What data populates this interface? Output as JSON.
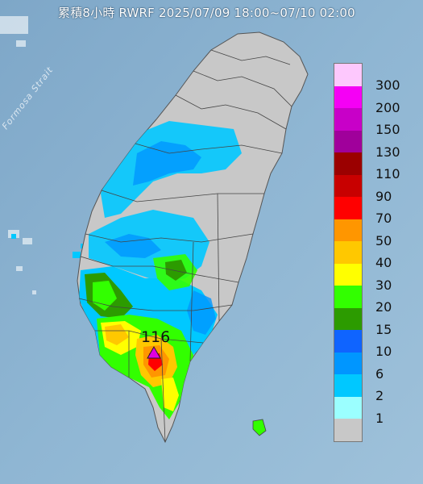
{
  "title": "累積8小時 RWRF 2025/07/09 18:00~07/10 02:00",
  "sea_label": "Formosa Strait",
  "max_marker": {
    "value": "116",
    "color": "#e000e0"
  },
  "legend": {
    "levels": [
      {
        "label": "300",
        "color": "#fdc8fd"
      },
      {
        "label": "200",
        "color": "#f500f5"
      },
      {
        "label": "150",
        "color": "#c800c8"
      },
      {
        "label": "130",
        "color": "#a0009b"
      },
      {
        "label": "110",
        "color": "#9b0000"
      },
      {
        "label": "90",
        "color": "#c80000"
      },
      {
        "label": "70",
        "color": "#ff0000"
      },
      {
        "label": "50",
        "color": "#ff9600"
      },
      {
        "label": "40",
        "color": "#ffc800"
      },
      {
        "label": "30",
        "color": "#ffff00"
      },
      {
        "label": "20",
        "color": "#32ff00"
      },
      {
        "label": "15",
        "color": "#2c9b00"
      },
      {
        "label": "10",
        "color": "#0f64ff"
      },
      {
        "label": "6",
        "color": "#0096ff"
      },
      {
        "label": "2",
        "color": "#00c8ff"
      },
      {
        "label": "1",
        "color": "#9bffff"
      },
      {
        "label": "",
        "color": "#c8c8c8"
      }
    ]
  }
}
